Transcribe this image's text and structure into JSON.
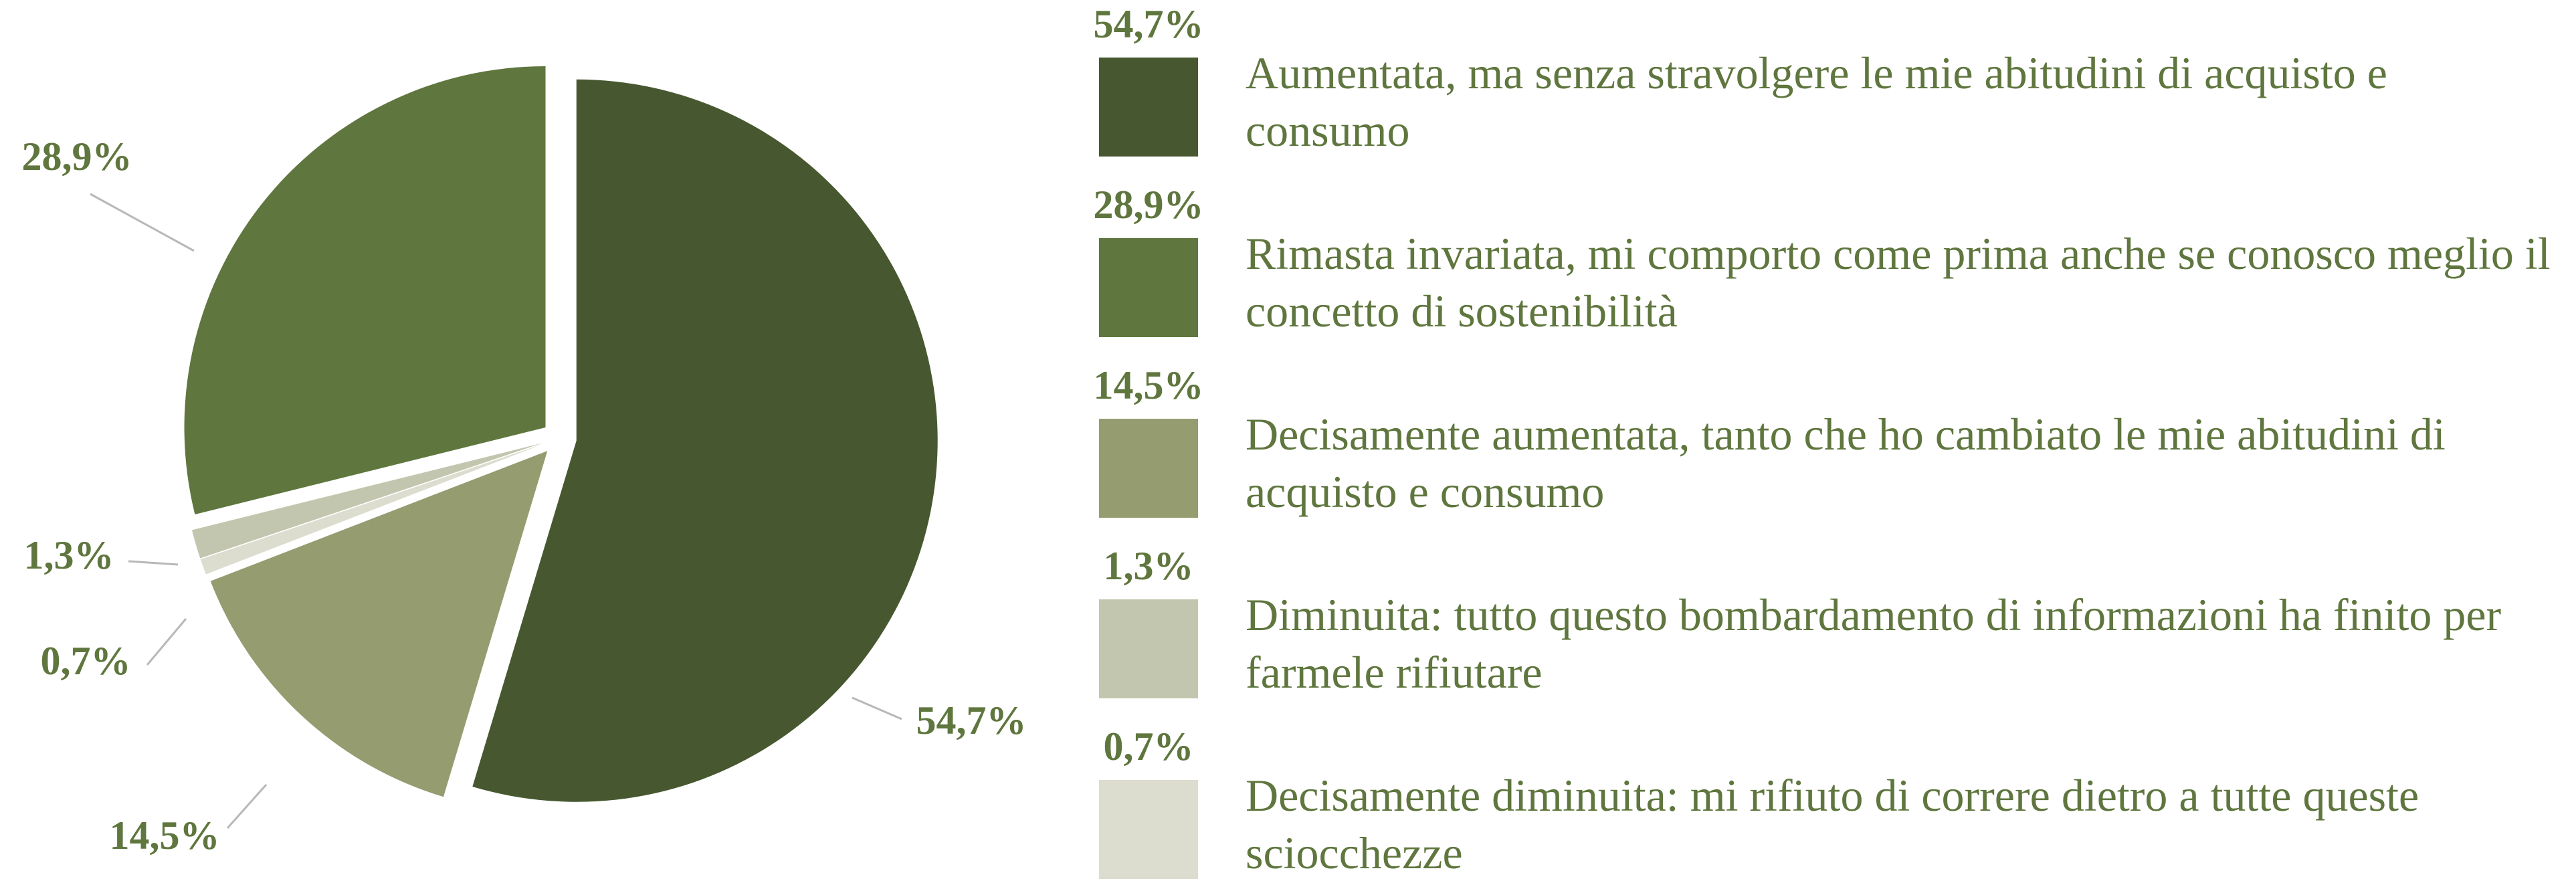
{
  "chart_data": {
    "type": "pie",
    "categories": [
      "Aumentata, ma senza stravolgere le mie abitudini di acquisto e consumo",
      "Rimasta invariata, mi comporto come prima anche se conosco meglio il concetto di sostenibilità",
      "Decisamente aumentata, tanto che ho cambiato le mie abitudini di acquisto e consumo",
      "Diminuita: tutto questo bombardamento di informazioni ha finito per farmele rifiutare",
      "Decisamente diminuita: mi rifiuto di correre dietro a tutte queste sciocchezze"
    ],
    "values": [
      54.7,
      28.9,
      14.5,
      1.3,
      0.7
    ],
    "value_labels": [
      "54,7%",
      "28,9%",
      "14,5%",
      "1,3%",
      "0,7%"
    ],
    "colors": [
      "#475830",
      "#5f763e",
      "#949c70",
      "#c3c6ae",
      "#dcdccf"
    ],
    "legend": "right"
  }
}
